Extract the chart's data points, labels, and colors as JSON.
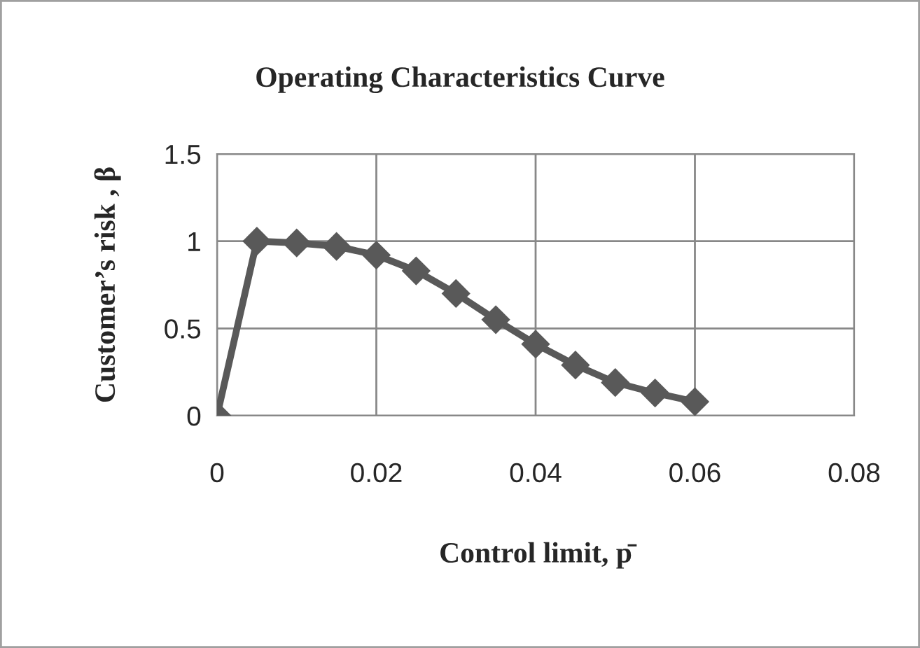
{
  "chart_data": {
    "type": "line",
    "title": "Operating Characteristics Curve",
    "xlabel": "Control limit, p̄",
    "ylabel": "Customer’s risk , β",
    "x": [
      0,
      0.005,
      0.01,
      0.015,
      0.02,
      0.025,
      0.03,
      0.035,
      0.04,
      0.045,
      0.05,
      0.055,
      0.06
    ],
    "series": [
      {
        "color": "#595959",
        "values": [
          0,
          1.0,
          0.99,
          0.97,
          0.92,
          0.83,
          0.7,
          0.55,
          0.41,
          0.29,
          0.19,
          0.13,
          0.08
        ]
      }
    ],
    "xlim": [
      0,
      0.08
    ],
    "xticks": [
      0,
      0.02,
      0.04,
      0.06,
      0.08
    ],
    "ylim": [
      0,
      1.5
    ],
    "yticks": [
      0,
      0.5,
      1,
      1.5
    ],
    "grid": true,
    "marker": "diamond",
    "line_style": "solid"
  }
}
